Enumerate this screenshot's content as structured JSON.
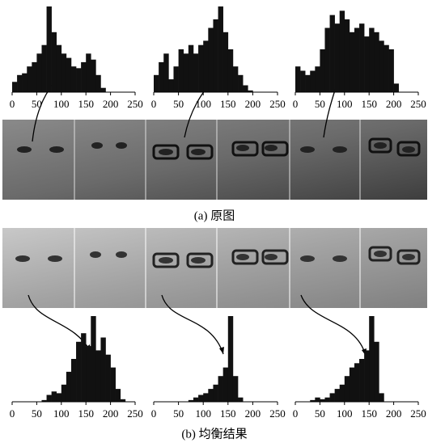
{
  "figure": {
    "captions": [
      "(a) 原图",
      "(b) 均衡结果"
    ]
  },
  "chart_data": [
    {
      "type": "histogram",
      "bins": [
        0,
        10,
        20,
        30,
        40,
        50,
        60,
        70,
        80,
        90,
        100,
        110,
        120,
        130,
        140,
        150,
        160,
        170,
        180,
        190,
        200,
        210,
        220,
        230,
        240,
        250
      ],
      "counts": [
        12,
        20,
        22,
        30,
        35,
        45,
        55,
        100,
        70,
        55,
        45,
        40,
        30,
        28,
        35,
        45,
        38,
        20,
        5,
        0,
        0,
        0,
        0,
        0,
        0
      ],
      "xlim": [
        0,
        250
      ],
      "ylim": [
        0,
        100
      ],
      "xticks": [
        0,
        50,
        100,
        150,
        200,
        250
      ],
      "color": "#111111"
    },
    {
      "type": "histogram",
      "bins": [
        0,
        10,
        20,
        30,
        40,
        50,
        60,
        70,
        80,
        90,
        100,
        110,
        120,
        130,
        140,
        150,
        160,
        170,
        180,
        190,
        200,
        210,
        220,
        230,
        240,
        250
      ],
      "counts": [
        20,
        35,
        45,
        15,
        30,
        50,
        45,
        55,
        45,
        55,
        60,
        75,
        85,
        100,
        70,
        50,
        30,
        20,
        8,
        2,
        0,
        0,
        0,
        0,
        0
      ],
      "xlim": [
        0,
        250
      ],
      "ylim": [
        0,
        100
      ],
      "xticks": [
        0,
        50,
        100,
        150,
        200,
        250
      ],
      "color": "#111111"
    },
    {
      "type": "histogram",
      "bins": [
        0,
        10,
        20,
        30,
        40,
        50,
        60,
        70,
        80,
        90,
        100,
        110,
        120,
        130,
        140,
        150,
        160,
        170,
        180,
        190,
        200,
        210,
        220,
        230,
        240,
        250
      ],
      "counts": [
        30,
        25,
        20,
        25,
        30,
        50,
        75,
        90,
        80,
        95,
        85,
        70,
        75,
        80,
        65,
        75,
        70,
        60,
        55,
        50,
        10,
        0,
        0,
        0,
        0
      ],
      "xlim": [
        0,
        250
      ],
      "ylim": [
        0,
        100
      ],
      "xticks": [
        0,
        50,
        100,
        150,
        200,
        250
      ],
      "color": "#111111"
    },
    {
      "type": "histogram",
      "bins": [
        0,
        10,
        20,
        30,
        40,
        50,
        60,
        70,
        80,
        90,
        100,
        110,
        120,
        130,
        140,
        150,
        160,
        170,
        180,
        190,
        200,
        210,
        220,
        230,
        240,
        250
      ],
      "counts": [
        0,
        0,
        0,
        0,
        0,
        0,
        2,
        8,
        12,
        10,
        20,
        35,
        50,
        70,
        80,
        65,
        100,
        60,
        75,
        55,
        40,
        15,
        3,
        0,
        0
      ],
      "xlim": [
        0,
        250
      ],
      "ylim": [
        0,
        100
      ],
      "xticks": [
        0,
        50,
        100,
        150,
        200,
        250
      ],
      "color": "#111111"
    },
    {
      "type": "histogram",
      "bins": [
        0,
        10,
        20,
        30,
        40,
        50,
        60,
        70,
        80,
        90,
        100,
        110,
        120,
        130,
        140,
        150,
        160,
        170,
        180,
        190,
        200,
        210,
        220,
        230,
        240,
        250
      ],
      "counts": [
        0,
        0,
        0,
        0,
        0,
        0,
        0,
        2,
        5,
        8,
        10,
        15,
        20,
        30,
        40,
        100,
        30,
        5,
        0,
        0,
        0,
        0,
        0,
        0,
        0
      ],
      "xlim": [
        0,
        250
      ],
      "ylim": [
        0,
        100
      ],
      "xticks": [
        0,
        50,
        100,
        150,
        200,
        250
      ],
      "color": "#111111"
    },
    {
      "type": "histogram",
      "bins": [
        0,
        10,
        20,
        30,
        40,
        50,
        60,
        70,
        80,
        90,
        100,
        110,
        120,
        130,
        140,
        150,
        160,
        170,
        180,
        190,
        200,
        210,
        220,
        230,
        240,
        250
      ],
      "counts": [
        0,
        0,
        0,
        2,
        5,
        3,
        5,
        10,
        15,
        20,
        30,
        40,
        45,
        50,
        60,
        100,
        70,
        10,
        0,
        0,
        0,
        0,
        0,
        0,
        0
      ],
      "xlim": [
        0,
        250
      ],
      "ylim": [
        0,
        100
      ],
      "xticks": [
        0,
        50,
        100,
        150,
        200,
        250
      ],
      "color": "#111111"
    }
  ]
}
